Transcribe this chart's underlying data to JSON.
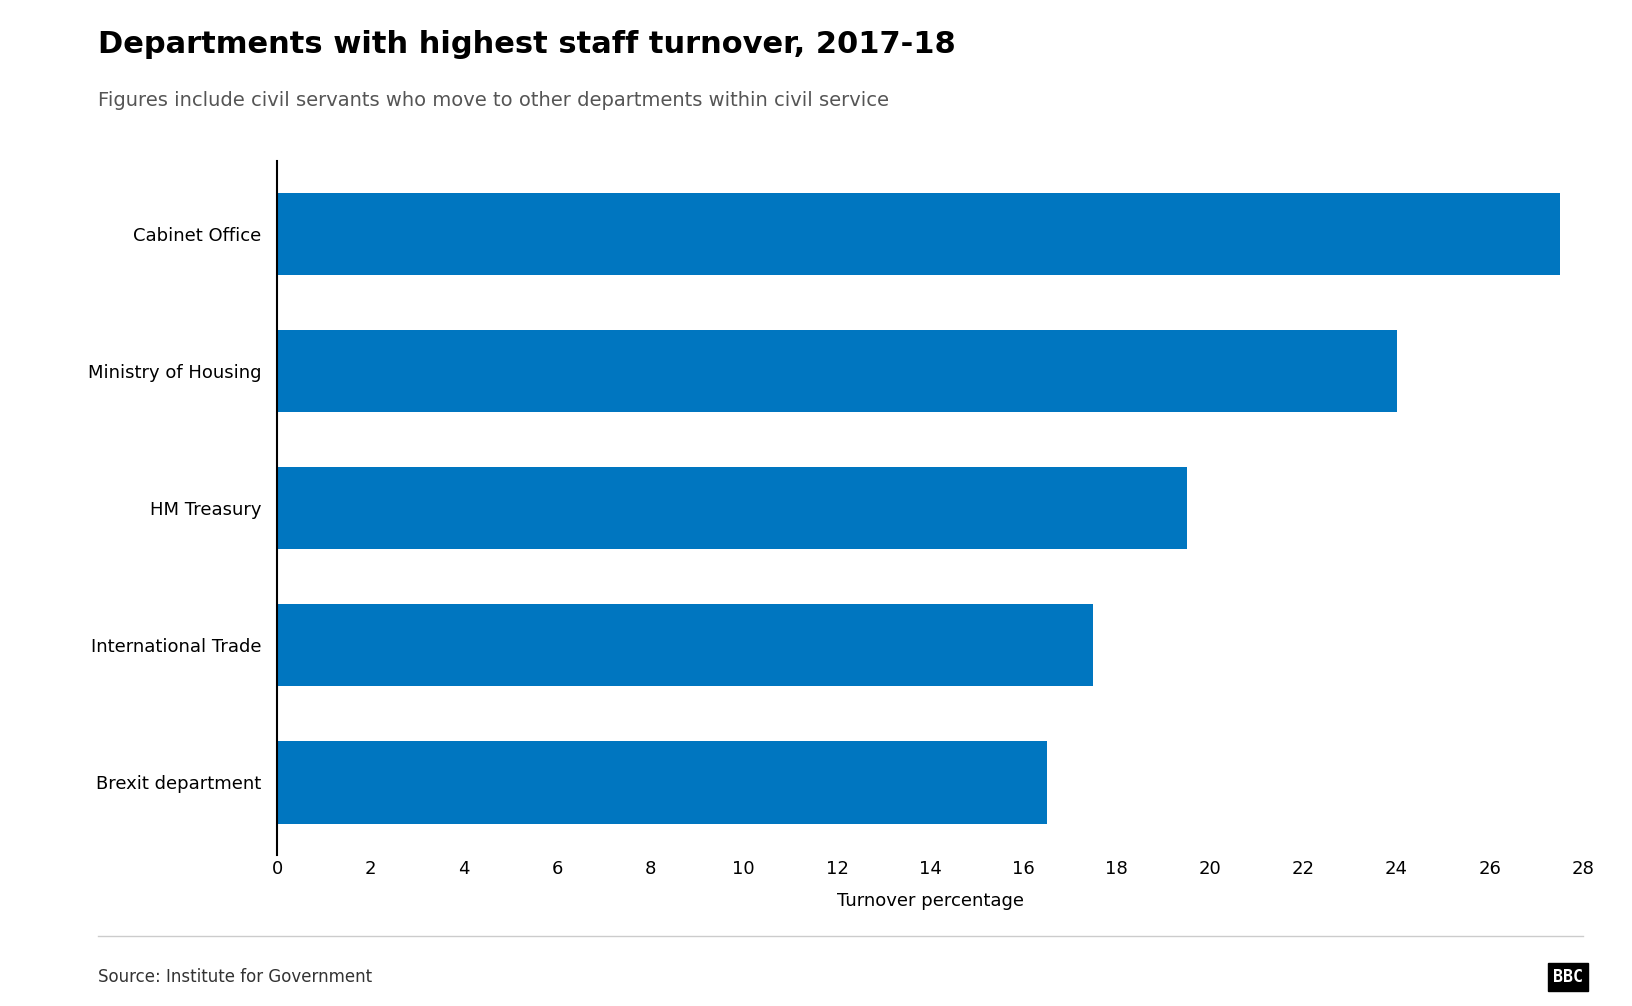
{
  "title": "Departments with highest staff turnover, 2017-18",
  "subtitle": "Figures include civil servants who move to other departments within civil service",
  "categories": [
    "Brexit department",
    "International Trade",
    "HM Treasury",
    "Ministry of Housing",
    "Cabinet Office"
  ],
  "values": [
    16.5,
    17.5,
    19.5,
    24.0,
    27.5
  ],
  "bar_color": "#0076C0",
  "xlabel": "Turnover percentage",
  "xlim": [
    0,
    28
  ],
  "xticks": [
    0,
    2,
    4,
    6,
    8,
    10,
    12,
    14,
    16,
    18,
    20,
    22,
    24,
    26,
    28
  ],
  "source": "Source: Institute for Government",
  "title_fontsize": 22,
  "subtitle_fontsize": 14,
  "label_fontsize": 13,
  "tick_fontsize": 13,
  "source_fontsize": 12,
  "background_color": "#FFFFFF",
  "bbc_logo_text": "BBC"
}
